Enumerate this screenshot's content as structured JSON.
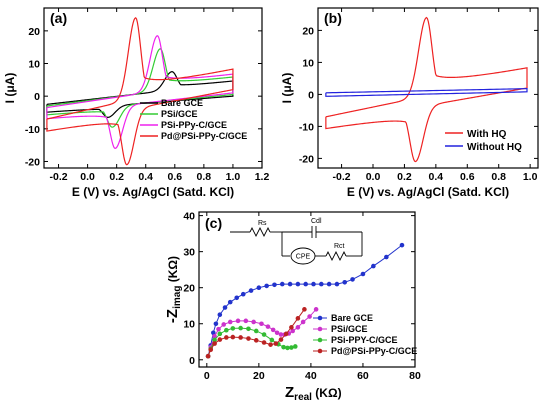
{
  "colors": {
    "bare_gce": "#000000",
    "psi_gce": "#33cc33",
    "psi_ppy_c_gce": "#ee22ee",
    "pd_psi_ppy_c_gce": "#ee2222",
    "with_hq": "#ee2222",
    "without_hq": "#2222dd",
    "eis_bare": "#2233cc",
    "eis_psi": "#cc33cc",
    "eis_psi_ppy": "#33bb33",
    "eis_pd": "#bb2222"
  },
  "chart_data": [
    {
      "panel": "(a)",
      "type": "line",
      "xlabel": "E (V) vs. Ag/AgCl (Satd. KCl)",
      "ylabel": "I (μA)",
      "xlim": [
        -0.3,
        1.2
      ],
      "ylim": [
        -22,
        27
      ],
      "xticks": [
        "-0.2",
        "0.0",
        "0.2",
        "0.4",
        "0.6",
        "0.8",
        "1.0",
        "1.2"
      ],
      "xtick_values": [
        -0.2,
        0.0,
        0.2,
        0.4,
        0.6,
        0.8,
        1.0,
        1.2
      ],
      "yticks": [
        "-20",
        "-10",
        "0",
        "10",
        "20"
      ],
      "ytick_values": [
        -20,
        -10,
        0,
        10,
        20
      ],
      "legend_position": "lower-right",
      "series": [
        {
          "name": "Bare GCE",
          "color_key": "bare_gce",
          "Ea": 0.58,
          "Ia": 7.5,
          "Ec": 0.14,
          "Ic": -6.5,
          "start": -2.5,
          "end": 4.0
        },
        {
          "name": "PSi/GCE",
          "color_key": "psi_gce",
          "Ea": 0.5,
          "Ia": 14.5,
          "Ec": 0.17,
          "Ic": -9.5,
          "start": -3.0,
          "end": 4.5
        },
        {
          "name": "PSi-PPy-C/GCE",
          "color_key": "psi_ppy_c_gce",
          "Ea": 0.48,
          "Ia": 18.5,
          "Ec": 0.19,
          "Ic": -16.0,
          "start": -3.5,
          "end": 5.0
        },
        {
          "name": "Pd@PSi-PPy-C/GCE",
          "color_key": "pd_psi_ppy_c_gce",
          "Ea": 0.33,
          "Ia": 24.0,
          "Ec": 0.27,
          "Ic": -21.0,
          "start": -7.0,
          "end": 6.0
        }
      ]
    },
    {
      "panel": "(b)",
      "type": "line",
      "xlabel": "E (V) vs. Ag/AgCl (Satd. KCl)",
      "ylabel": "I (μA)",
      "xlim": [
        -0.35,
        1.05
      ],
      "ylim": [
        -23,
        27
      ],
      "xticks": [
        "-0.2",
        "0.0",
        "0.2",
        "0.4",
        "0.6",
        "0.8",
        "1.0"
      ],
      "xtick_values": [
        -0.2,
        0.0,
        0.2,
        0.4,
        0.6,
        0.8,
        1.0
      ],
      "yticks": [
        "-20",
        "-10",
        "0",
        "10",
        "20"
      ],
      "ytick_values": [
        -20,
        -10,
        0,
        10,
        20
      ],
      "legend_position": "lower-right",
      "series": [
        {
          "name": "With HQ",
          "color_key": "with_hq",
          "Ea": 0.34,
          "Ia": 24.0,
          "Ec": 0.27,
          "Ic": -21.0,
          "start": -7.0,
          "end": 6.0
        },
        {
          "name": "Without HQ",
          "color_key": "without_hq",
          "flat": true,
          "start_top": 0.5,
          "end_top": 1.8,
          "start_bot": -0.6,
          "end_bot": 0.8
        }
      ]
    },
    {
      "panel": "(c)",
      "type": "scatter",
      "xlabel_main": "Z",
      "xlabel_sub": "real",
      "xlabel_unit": " (KΩ)",
      "ylabel_main": "-Z",
      "ylabel_sub": "imag",
      "ylabel_unit": " (KΩ)",
      "xlim": [
        -3,
        80
      ],
      "ylim": [
        -2,
        41
      ],
      "xticks": [
        "0",
        "20",
        "40",
        "60",
        "80"
      ],
      "xtick_values": [
        0,
        20,
        40,
        60,
        80
      ],
      "yticks": [
        "0",
        "10",
        "20",
        "30",
        "40"
      ],
      "ytick_values": [
        0,
        10,
        20,
        30,
        40
      ],
      "legend_position": "lower-right",
      "circuit_labels": {
        "rs": "Rs",
        "cdl": "Cdl",
        "cpe": "CPE",
        "rct": "Rct"
      },
      "series": [
        {
          "name": "Bare GCE",
          "color_key": "eis_bare",
          "x": [
            0.5,
            1.5,
            2.5,
            3.5,
            5,
            7,
            9,
            11.5,
            14,
            17,
            20,
            23,
            26,
            29,
            32,
            35,
            38,
            41,
            44,
            47,
            50,
            53,
            56,
            60,
            64,
            69,
            75
          ],
          "y": [
            1,
            4,
            7.5,
            10,
            12.5,
            14.5,
            16,
            17.2,
            18.2,
            19.2,
            20,
            20.5,
            20.8,
            21,
            21,
            21,
            21,
            21,
            21,
            21,
            21,
            21.5,
            22.3,
            23.8,
            26,
            28.5,
            31.8
          ]
        },
        {
          "name": "PSi/GCE",
          "color_key": "eis_psi",
          "x": [
            0.5,
            1.5,
            3,
            4.5,
            6.5,
            9,
            12,
            15,
            18,
            21,
            23.5,
            25.5,
            27,
            28.5,
            30,
            31.5,
            33,
            35,
            37,
            39.5,
            42
          ],
          "y": [
            1,
            3.5,
            6.5,
            8.5,
            9.8,
            10.5,
            10.8,
            10.8,
            10.5,
            10,
            9.2,
            8.3,
            7.5,
            7,
            7,
            7.3,
            8,
            9,
            10.5,
            12,
            14
          ]
        },
        {
          "name": "PSi-PPY-C/GCE",
          "color_key": "eis_psi_ppy",
          "x": [
            0.5,
            1.5,
            3,
            5,
            7.5,
            10,
            13,
            16,
            19,
            22,
            25,
            27.5,
            29.5,
            31,
            32.5,
            34
          ],
          "y": [
            1,
            3,
            5.5,
            7.2,
            8.2,
            8.7,
            8.8,
            8.6,
            8,
            7,
            5.5,
            4.3,
            3.5,
            3.3,
            3.4,
            3.7
          ]
        },
        {
          "name": "Pd@PSi-PPy-C/GCE",
          "color_key": "eis_pd",
          "x": [
            0.5,
            1.5,
            3,
            5,
            7.5,
            10,
            13,
            16,
            19,
            22,
            24.5,
            26.5,
            28.5,
            30.5,
            32.5,
            35,
            37.5
          ],
          "y": [
            1,
            2.8,
            4.5,
            5.6,
            6.2,
            6.3,
            6.2,
            5.9,
            5.4,
            4.8,
            4.2,
            4.5,
            5.6,
            7.2,
            9,
            11.5,
            14
          ]
        }
      ]
    }
  ]
}
